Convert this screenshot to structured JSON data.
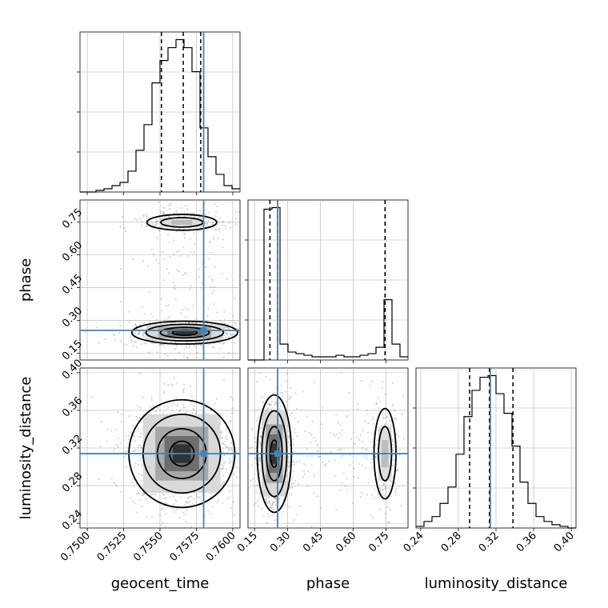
{
  "chart_data": {
    "type": "corner",
    "parameters": [
      {
        "name": "geocent_time",
        "label": "geocent_time",
        "range": [
          0.7495,
          0.7605
        ],
        "ticks": [
          "0.7500",
          "0.7525",
          "0.7550",
          "0.7575",
          "0.7600"
        ],
        "tick_values": [
          0.75,
          0.7525,
          0.755,
          0.7575,
          0.76
        ],
        "truth": 0.758,
        "quantiles": [
          0.7551,
          0.7566,
          0.7578
        ]
      },
      {
        "name": "phase",
        "label": "phase",
        "range": [
          0.12,
          0.85
        ],
        "ticks": [
          "0.15",
          "0.30",
          "0.45",
          "0.60",
          "0.75"
        ],
        "tick_values": [
          0.15,
          0.3,
          0.45,
          0.6,
          0.75
        ],
        "truth": 0.255,
        "quantiles": [
          0.22,
          0.255,
          0.745
        ]
      },
      {
        "name": "luminosity_distance",
        "label": "luminosity_distance",
        "range": [
          0.235,
          0.405
        ],
        "ticks": [
          "0.24",
          "0.28",
          "0.32",
          "0.36",
          "0.40"
        ],
        "tick_values": [
          0.24,
          0.28,
          0.32,
          0.36,
          0.4
        ],
        "truth": 0.314,
        "quantiles": [
          0.292,
          0.313,
          0.338
        ]
      }
    ],
    "hist_1d": {
      "geocent_time": {
        "edges_start": 0.7495,
        "bin_width": 0.00055,
        "counts": [
          0,
          0,
          1,
          2,
          4,
          6,
          13,
          26,
          42,
          68,
          82,
          90,
          95,
          90,
          75,
          40,
          22,
          11,
          4,
          2
        ]
      },
      "phase": {
        "edges_start": 0.12,
        "bin_width": 0.0365,
        "counts": [
          0,
          0,
          95,
          96,
          10,
          5,
          4,
          3,
          2,
          2,
          2,
          3,
          2,
          2,
          3,
          4,
          8,
          38,
          10,
          2
        ]
      },
      "luminosity_distance": {
        "edges_start": 0.235,
        "bin_width": 0.0085,
        "counts": [
          1,
          4,
          7,
          15,
          25,
          45,
          68,
          84,
          92,
          93,
          82,
          70,
          50,
          28,
          15,
          7,
          4,
          2,
          1,
          0
        ]
      }
    },
    "truth_color": "#4682b4",
    "grid": true
  }
}
